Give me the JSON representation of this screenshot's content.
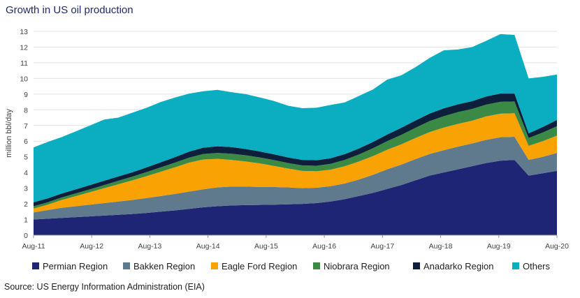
{
  "title": "Growth in US oil production",
  "source": "Source: US Energy Information Administration (EIA)",
  "chart_data": {
    "type": "area",
    "stacked": true,
    "ylabel": "million bbl/day",
    "xlabel": "",
    "ylim": [
      0,
      13
    ],
    "yticks": [
      0,
      1,
      2,
      3,
      4,
      5,
      6,
      7,
      8,
      9,
      10,
      11,
      12,
      13
    ],
    "xticks": [
      "Aug-11",
      "Aug-12",
      "Aug-13",
      "Aug-14",
      "Aug-15",
      "Aug-16",
      "Aug-17",
      "Aug-18",
      "Aug-19",
      "Aug-20"
    ],
    "grid": "horizontal",
    "legend_position": "bottom",
    "x": [
      "Aug-11",
      "Nov-11",
      "Feb-12",
      "May-12",
      "Aug-12",
      "Nov-12",
      "Feb-13",
      "May-13",
      "Aug-13",
      "Nov-13",
      "Feb-14",
      "May-14",
      "Aug-14",
      "Nov-14",
      "Feb-15",
      "May-15",
      "Aug-15",
      "Nov-15",
      "Feb-16",
      "May-16",
      "Aug-16",
      "Nov-16",
      "Feb-17",
      "May-17",
      "Aug-17",
      "Nov-17",
      "Feb-18",
      "May-18",
      "Aug-18",
      "Nov-18",
      "Feb-19",
      "May-19",
      "Aug-19",
      "Nov-19",
      "Feb-20",
      "Apr-20",
      "May-20",
      "Aug-20"
    ],
    "series": [
      {
        "name": "Permian Region",
        "color": "#1f2575",
        "values": [
          1.0,
          1.05,
          1.1,
          1.15,
          1.2,
          1.25,
          1.3,
          1.35,
          1.42,
          1.5,
          1.58,
          1.68,
          1.78,
          1.85,
          1.9,
          1.92,
          1.93,
          1.95,
          1.97,
          2.0,
          2.05,
          2.15,
          2.3,
          2.5,
          2.7,
          2.95,
          3.2,
          3.5,
          3.8,
          4.0,
          4.2,
          4.4,
          4.6,
          4.75,
          4.8,
          3.8,
          3.95,
          4.1
        ]
      },
      {
        "name": "Bakken Region",
        "color": "#5e7a8c",
        "values": [
          0.45,
          0.55,
          0.65,
          0.7,
          0.75,
          0.8,
          0.85,
          0.9,
          0.95,
          1.0,
          1.05,
          1.1,
          1.15,
          1.2,
          1.2,
          1.18,
          1.15,
          1.12,
          1.08,
          1.0,
          0.98,
          0.98,
          1.0,
          1.05,
          1.15,
          1.25,
          1.3,
          1.35,
          1.38,
          1.42,
          1.45,
          1.45,
          1.48,
          1.5,
          1.48,
          1.0,
          1.05,
          1.15
        ]
      },
      {
        "name": "Eagle Ford Region",
        "color": "#f8a203",
        "values": [
          0.25,
          0.35,
          0.5,
          0.65,
          0.8,
          0.95,
          1.1,
          1.25,
          1.4,
          1.55,
          1.7,
          1.85,
          1.9,
          1.82,
          1.7,
          1.6,
          1.5,
          1.35,
          1.2,
          1.1,
          1.05,
          1.05,
          1.1,
          1.15,
          1.2,
          1.25,
          1.3,
          1.35,
          1.4,
          1.45,
          1.45,
          1.45,
          1.5,
          1.5,
          1.5,
          0.9,
          1.0,
          1.1
        ]
      },
      {
        "name": "Niobrara Region",
        "color": "#3a8a46",
        "values": [
          0.15,
          0.15,
          0.16,
          0.17,
          0.18,
          0.2,
          0.22,
          0.24,
          0.26,
          0.28,
          0.3,
          0.32,
          0.35,
          0.38,
          0.4,
          0.4,
          0.38,
          0.37,
          0.35,
          0.35,
          0.35,
          0.37,
          0.4,
          0.45,
          0.5,
          0.55,
          0.6,
          0.65,
          0.7,
          0.72,
          0.75,
          0.75,
          0.75,
          0.76,
          0.75,
          0.5,
          0.55,
          0.6
        ]
      },
      {
        "name": "Anadarko Region",
        "color": "#0e1f3b",
        "values": [
          0.25,
          0.25,
          0.25,
          0.26,
          0.27,
          0.28,
          0.28,
          0.28,
          0.3,
          0.32,
          0.35,
          0.38,
          0.4,
          0.42,
          0.42,
          0.4,
          0.38,
          0.37,
          0.36,
          0.35,
          0.35,
          0.36,
          0.37,
          0.38,
          0.4,
          0.42,
          0.45,
          0.47,
          0.48,
          0.5,
          0.5,
          0.5,
          0.52,
          0.52,
          0.5,
          0.3,
          0.35,
          0.4
        ]
      },
      {
        "name": "Others",
        "color": "#0badc1",
        "values": [
          3.5,
          3.6,
          3.6,
          3.7,
          3.8,
          3.9,
          3.75,
          3.8,
          3.8,
          3.85,
          3.8,
          3.7,
          3.6,
          3.6,
          3.5,
          3.5,
          3.45,
          3.4,
          3.3,
          3.3,
          3.35,
          3.4,
          3.3,
          3.35,
          3.35,
          3.5,
          3.35,
          3.4,
          3.55,
          3.7,
          3.5,
          3.45,
          3.55,
          3.8,
          3.75,
          3.5,
          3.2,
          2.9
        ]
      }
    ]
  }
}
